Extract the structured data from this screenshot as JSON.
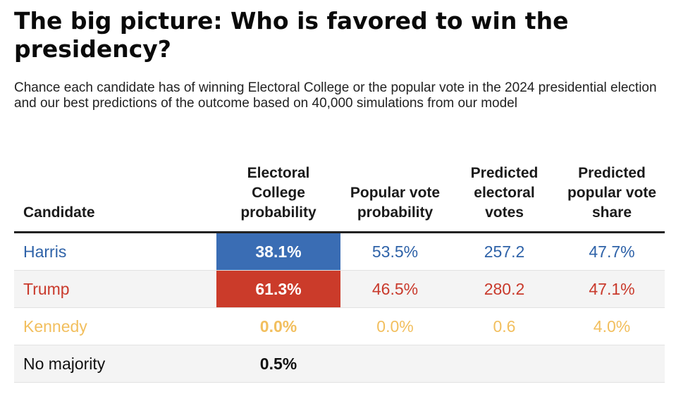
{
  "title": "The big picture: Who is favored to win the presidency?",
  "subtitle": "Chance each candidate has of winning Electoral College or the popular vote in the 2024 presidential election and our best predictions of the outcome based on 40,000 simulations from our model",
  "colors": {
    "harris": "#2e62a8",
    "trump": "#c93a2c",
    "kennedy": "#f2bf5e",
    "no_majority": "#111111",
    "harris_fill": "#3a6db4",
    "trump_fill": "#cb3b2a"
  },
  "chart_data": {
    "type": "table",
    "columns": [
      "Candidate",
      "Electoral College probability",
      "Popular vote probability",
      "Predicted electoral votes",
      "Predicted popular vote share"
    ],
    "rows": [
      {
        "candidate": "Harris",
        "ec_probability": "38.1%",
        "popular_probability": "53.5%",
        "predicted_ev": "257.2",
        "predicted_share": "47.7%"
      },
      {
        "candidate": "Trump",
        "ec_probability": "61.3%",
        "popular_probability": "46.5%",
        "predicted_ev": "280.2",
        "predicted_share": "47.1%"
      },
      {
        "candidate": "Kennedy",
        "ec_probability": "0.0%",
        "popular_probability": "0.0%",
        "predicted_ev": "0.6",
        "predicted_share": "4.0%"
      },
      {
        "candidate": "No majority",
        "ec_probability": "0.5%",
        "popular_probability": "",
        "predicted_ev": "",
        "predicted_share": ""
      }
    ]
  }
}
